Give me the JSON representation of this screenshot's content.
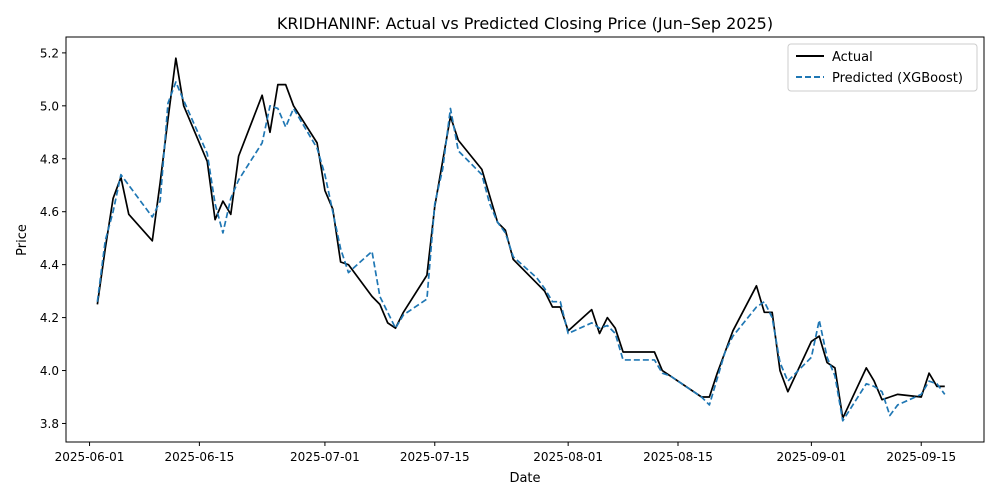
{
  "chart_data": {
    "type": "line",
    "title": "KRIDHANINF: Actual vs Predicted Closing Price (Jun–Sep 2025)",
    "xlabel": "Date",
    "ylabel": "Price",
    "xlim": [
      "2025-05-29",
      "2025-09-23"
    ],
    "ylim": [
      3.73,
      5.26
    ],
    "x_ticks": [
      "2025-06-01",
      "2025-06-15",
      "2025-07-01",
      "2025-07-15",
      "2025-08-01",
      "2025-08-15",
      "2025-09-01",
      "2025-09-15"
    ],
    "y_ticks": [
      3.8,
      4.0,
      4.2,
      4.4,
      4.6,
      4.8,
      5.0,
      5.2
    ],
    "legend_position": "top-right",
    "grid": false,
    "series": [
      {
        "name": "Actual",
        "color": "#000000",
        "style": "solid",
        "points": [
          [
            "2025-06-02",
            4.25
          ],
          [
            "2025-06-03",
            4.46
          ],
          [
            "2025-06-04",
            4.65
          ],
          [
            "2025-06-05",
            4.73
          ],
          [
            "2025-06-06",
            4.59
          ],
          [
            "2025-06-09",
            4.49
          ],
          [
            "2025-06-10",
            4.71
          ],
          [
            "2025-06-11",
            4.95
          ],
          [
            "2025-06-12",
            5.18
          ],
          [
            "2025-06-13",
            5.0
          ],
          [
            "2025-06-16",
            4.79
          ],
          [
            "2025-06-17",
            4.57
          ],
          [
            "2025-06-18",
            4.64
          ],
          [
            "2025-06-19",
            4.59
          ],
          [
            "2025-06-20",
            4.81
          ],
          [
            "2025-06-23",
            5.04
          ],
          [
            "2025-06-24",
            4.9
          ],
          [
            "2025-06-25",
            5.08
          ],
          [
            "2025-06-26",
            5.08
          ],
          [
            "2025-06-27",
            5.0
          ],
          [
            "2025-06-30",
            4.86
          ],
          [
            "2025-07-01",
            4.68
          ],
          [
            "2025-07-02",
            4.61
          ],
          [
            "2025-07-03",
            4.41
          ],
          [
            "2025-07-04",
            4.4
          ],
          [
            "2025-07-07",
            4.28
          ],
          [
            "2025-07-08",
            4.25
          ],
          [
            "2025-07-09",
            4.18
          ],
          [
            "2025-07-10",
            4.16
          ],
          [
            "2025-07-11",
            4.22
          ],
          [
            "2025-07-14",
            4.36
          ],
          [
            "2025-07-15",
            4.62
          ],
          [
            "2025-07-16",
            4.79
          ],
          [
            "2025-07-17",
            4.96
          ],
          [
            "2025-07-18",
            4.87
          ],
          [
            "2025-07-21",
            4.76
          ],
          [
            "2025-07-22",
            4.66
          ],
          [
            "2025-07-23",
            4.56
          ],
          [
            "2025-07-24",
            4.53
          ],
          [
            "2025-07-25",
            4.42
          ],
          [
            "2025-07-28",
            4.33
          ],
          [
            "2025-07-29",
            4.3
          ],
          [
            "2025-07-30",
            4.24
          ],
          [
            "2025-07-31",
            4.24
          ],
          [
            "2025-08-01",
            4.15
          ],
          [
            "2025-08-04",
            4.23
          ],
          [
            "2025-08-05",
            4.14
          ],
          [
            "2025-08-06",
            4.2
          ],
          [
            "2025-08-07",
            4.16
          ],
          [
            "2025-08-08",
            4.07
          ],
          [
            "2025-08-11",
            4.07
          ],
          [
            "2025-08-12",
            4.07
          ],
          [
            "2025-08-13",
            4.0
          ],
          [
            "2025-08-14",
            3.98
          ],
          [
            "2025-08-18",
            3.9
          ],
          [
            "2025-08-19",
            3.9
          ],
          [
            "2025-08-20",
            3.99
          ],
          [
            "2025-08-21",
            4.07
          ],
          [
            "2025-08-22",
            4.15
          ],
          [
            "2025-08-25",
            4.32
          ],
          [
            "2025-08-26",
            4.22
          ],
          [
            "2025-08-27",
            4.22
          ],
          [
            "2025-08-28",
            4.0
          ],
          [
            "2025-08-29",
            3.92
          ],
          [
            "2025-09-01",
            4.11
          ],
          [
            "2025-09-02",
            4.13
          ],
          [
            "2025-09-03",
            4.03
          ],
          [
            "2025-09-04",
            4.01
          ],
          [
            "2025-09-05",
            3.82
          ],
          [
            "2025-09-08",
            4.01
          ],
          [
            "2025-09-09",
            3.96
          ],
          [
            "2025-09-10",
            3.89
          ],
          [
            "2025-09-11",
            3.9
          ],
          [
            "2025-09-12",
            3.91
          ],
          [
            "2025-09-15",
            3.9
          ],
          [
            "2025-09-16",
            3.99
          ],
          [
            "2025-09-17",
            3.94
          ],
          [
            "2025-09-18",
            3.94
          ]
        ]
      },
      {
        "name": "Predicted (XGBoost)",
        "color": "#1f77b4",
        "style": "dashed",
        "points": [
          [
            "2025-06-02",
            4.26
          ],
          [
            "2025-06-03",
            4.49
          ],
          [
            "2025-06-04",
            4.6
          ],
          [
            "2025-06-05",
            4.74
          ],
          [
            "2025-06-06",
            4.7
          ],
          [
            "2025-06-09",
            4.58
          ],
          [
            "2025-06-10",
            4.64
          ],
          [
            "2025-06-11",
            5.01
          ],
          [
            "2025-06-12",
            5.09
          ],
          [
            "2025-06-13",
            5.02
          ],
          [
            "2025-06-16",
            4.82
          ],
          [
            "2025-06-17",
            4.63
          ],
          [
            "2025-06-18",
            4.52
          ],
          [
            "2025-06-19",
            4.65
          ],
          [
            "2025-06-20",
            4.72
          ],
          [
            "2025-06-23",
            4.86
          ],
          [
            "2025-06-24",
            5.0
          ],
          [
            "2025-06-25",
            4.99
          ],
          [
            "2025-06-26",
            4.92
          ],
          [
            "2025-06-27",
            4.99
          ],
          [
            "2025-06-30",
            4.84
          ],
          [
            "2025-07-01",
            4.74
          ],
          [
            "2025-07-02",
            4.6
          ],
          [
            "2025-07-03",
            4.46
          ],
          [
            "2025-07-04",
            4.37
          ],
          [
            "2025-07-07",
            4.45
          ],
          [
            "2025-07-08",
            4.28
          ],
          [
            "2025-07-09",
            4.22
          ],
          [
            "2025-07-10",
            4.16
          ],
          [
            "2025-07-11",
            4.21
          ],
          [
            "2025-07-14",
            4.27
          ],
          [
            "2025-07-15",
            4.63
          ],
          [
            "2025-07-16",
            4.76
          ],
          [
            "2025-07-17",
            4.99
          ],
          [
            "2025-07-18",
            4.83
          ],
          [
            "2025-07-21",
            4.74
          ],
          [
            "2025-07-22",
            4.63
          ],
          [
            "2025-07-23",
            4.56
          ],
          [
            "2025-07-24",
            4.52
          ],
          [
            "2025-07-25",
            4.43
          ],
          [
            "2025-07-28",
            4.35
          ],
          [
            "2025-07-29",
            4.31
          ],
          [
            "2025-07-30",
            4.26
          ],
          [
            "2025-07-31",
            4.26
          ],
          [
            "2025-08-01",
            4.14
          ],
          [
            "2025-08-04",
            4.18
          ],
          [
            "2025-08-05",
            4.16
          ],
          [
            "2025-08-06",
            4.17
          ],
          [
            "2025-08-07",
            4.14
          ],
          [
            "2025-08-08",
            4.04
          ],
          [
            "2025-08-11",
            4.04
          ],
          [
            "2025-08-12",
            4.04
          ],
          [
            "2025-08-13",
            3.99
          ],
          [
            "2025-08-14",
            3.98
          ],
          [
            "2025-08-18",
            3.9
          ],
          [
            "2025-08-19",
            3.87
          ],
          [
            "2025-08-20",
            3.97
          ],
          [
            "2025-08-21",
            4.07
          ],
          [
            "2025-08-22",
            4.13
          ],
          [
            "2025-08-25",
            4.24
          ],
          [
            "2025-08-26",
            4.26
          ],
          [
            "2025-08-27",
            4.2
          ],
          [
            "2025-08-28",
            4.03
          ],
          [
            "2025-08-29",
            3.96
          ],
          [
            "2025-09-01",
            4.05
          ],
          [
            "2025-09-02",
            4.19
          ],
          [
            "2025-09-03",
            4.05
          ],
          [
            "2025-09-04",
            3.98
          ],
          [
            "2025-09-05",
            3.81
          ],
          [
            "2025-09-08",
            3.95
          ],
          [
            "2025-09-09",
            3.94
          ],
          [
            "2025-09-10",
            3.92
          ],
          [
            "2025-09-11",
            3.83
          ],
          [
            "2025-09-12",
            3.87
          ],
          [
            "2025-09-15",
            3.91
          ],
          [
            "2025-09-16",
            3.96
          ],
          [
            "2025-09-17",
            3.95
          ],
          [
            "2025-09-18",
            3.91
          ]
        ]
      }
    ]
  }
}
